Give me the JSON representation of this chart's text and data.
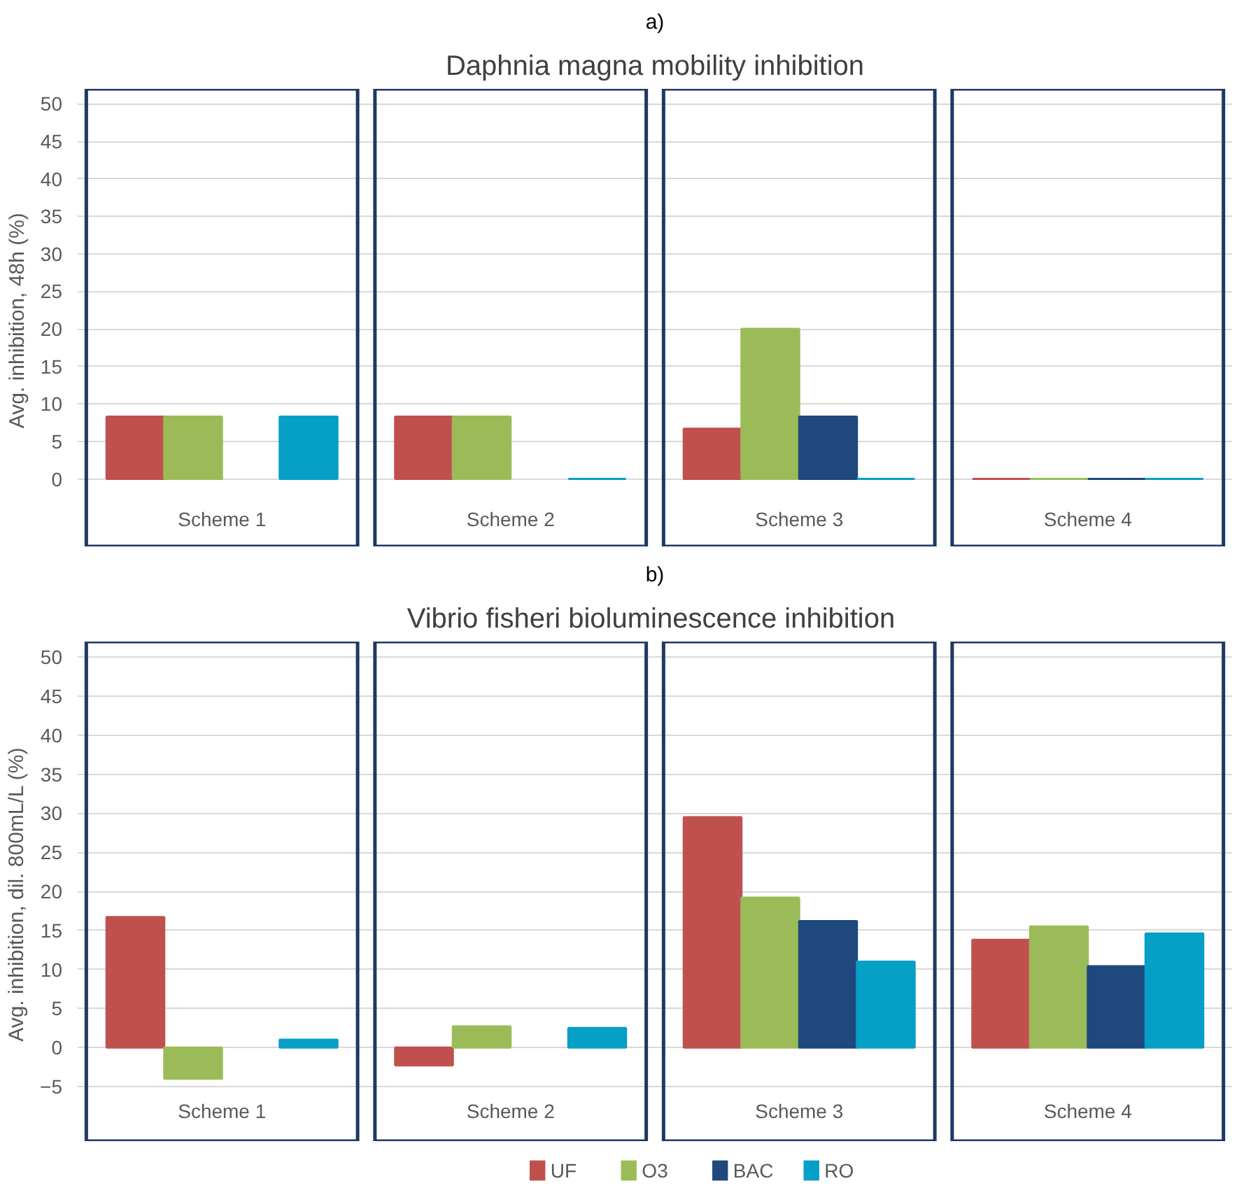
{
  "chart_data": [
    {
      "type": "bar",
      "title": "a)",
      "subtitle": "Daphnia magna mobility inhibition",
      "ylabel": "Avg.  inhibition, 48h (%)",
      "categories": [
        "Scheme 1",
        "Scheme 2",
        "Scheme 3",
        "Scheme 4"
      ],
      "series": [
        {
          "color": "#c0504d",
          "values": [
            8.3,
            8.3,
            6.7,
            0
          ]
        },
        {
          "color": "#9bbb59",
          "values": [
            8.3,
            8.3,
            20,
            0
          ]
        },
        {
          "color": "#1f497d",
          "values": [
            null,
            null,
            8.3,
            0
          ]
        },
        {
          "color": "#069fc6",
          "values": [
            8.3,
            0,
            0,
            0
          ]
        }
      ],
      "ylim": [
        -9,
        52
      ],
      "yticks": [
        0,
        5,
        10,
        15,
        20,
        25,
        30,
        35,
        40,
        45,
        50
      ],
      "grid": "y"
    },
    {
      "type": "bar",
      "title": "b)",
      "subtitle": "Vibrio fisheri  bioluminescence inhibition",
      "ylabel": "Avg.  inhibition, dil. 800mL/L (%)",
      "categories": [
        "Scheme 1",
        "Scheme 2",
        "Scheme 3",
        "Scheme 4"
      ],
      "series": [
        {
          "name": "UF",
          "color": "#c0504d",
          "values": [
            16.7,
            -2.3,
            29.5,
            13.8
          ]
        },
        {
          "name": "O3",
          "color": "#9bbb59",
          "values": [
            -4,
            2.7,
            19.2,
            15.5
          ]
        },
        {
          "name": "BAC",
          "color": "#1f497d",
          "values": [
            null,
            null,
            16.2,
            10.4
          ]
        },
        {
          "name": "RO",
          "color": "#069fc6",
          "values": [
            1.0,
            2.5,
            11.0,
            14.6
          ]
        }
      ],
      "ylim": [
        -12,
        52
      ],
      "yticks": [
        -5,
        0,
        5,
        10,
        15,
        20,
        25,
        30,
        35,
        40,
        45,
        50
      ],
      "grid": "y",
      "legend": "bottom"
    }
  ]
}
